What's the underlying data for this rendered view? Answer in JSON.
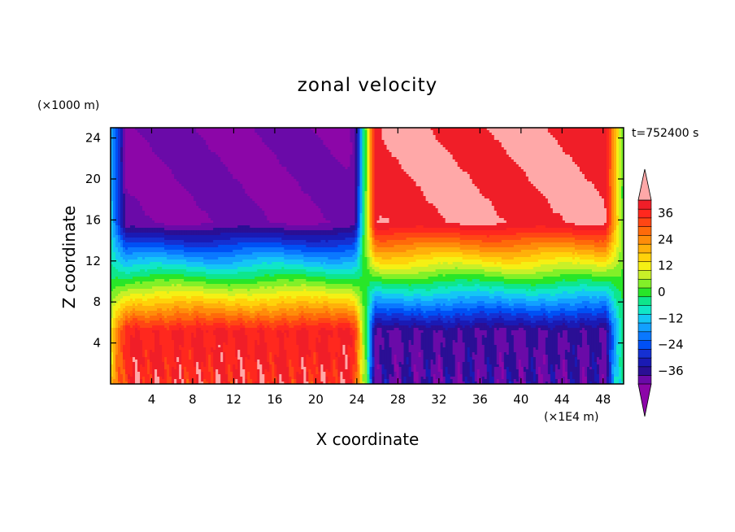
{
  "chart_data": {
    "type": "heatmap",
    "title": "zonal velocity",
    "xlabel": "X coordinate",
    "ylabel": "Z coordinate",
    "x_unit": "(×1E4 m)",
    "y_unit": "(×1000 m)",
    "time_label": "t=752400 s",
    "xlim": [
      0,
      50
    ],
    "ylim": [
      0,
      25
    ],
    "x_ticks": [
      4,
      8,
      12,
      16,
      20,
      24,
      28,
      32,
      36,
      40,
      44,
      48
    ],
    "y_ticks": [
      4,
      8,
      12,
      16,
      20,
      24
    ],
    "x_tick_labels": [
      "4",
      "8",
      "12",
      "16",
      "20",
      "24",
      "28",
      "32",
      "36",
      "40",
      "44",
      "48"
    ],
    "y_tick_labels": [
      "4",
      "8",
      "12",
      "16",
      "20",
      "24"
    ],
    "colorbar": {
      "min": -42,
      "max": 42,
      "step": 4,
      "tick_values": [
        36,
        24,
        12,
        0,
        -12,
        -24,
        -36
      ],
      "tick_labels": [
        "36",
        "24",
        "12",
        "0",
        "−12",
        "−24",
        "−36"
      ],
      "colors": [
        "#6a0aa8",
        "#2a0f95",
        "#1a1ab4",
        "#1530d2",
        "#0050f5",
        "#0a78ff",
        "#12a0ff",
        "#14c6f5",
        "#10e6c8",
        "#0ee68c",
        "#28e628",
        "#82f028",
        "#c8f028",
        "#f5f014",
        "#ffd20a",
        "#ffb00a",
        "#ff8c0a",
        "#ff6a0a",
        "#ff4614",
        "#ff281e",
        "#f01e28"
      ],
      "under_color": "#8c06a8",
      "over_color": "#ffa8a8"
    },
    "field_description_points": [
      {
        "region": "west upper",
        "x": 10,
        "z": 22,
        "u": -42
      },
      {
        "region": "west surface",
        "x": 10,
        "z": 1,
        "u": 38
      },
      {
        "region": "east upper",
        "x": 35,
        "z": 22,
        "u": 42
      },
      {
        "region": "east surface",
        "x": 35,
        "z": 1,
        "u": -38
      }
    ]
  }
}
